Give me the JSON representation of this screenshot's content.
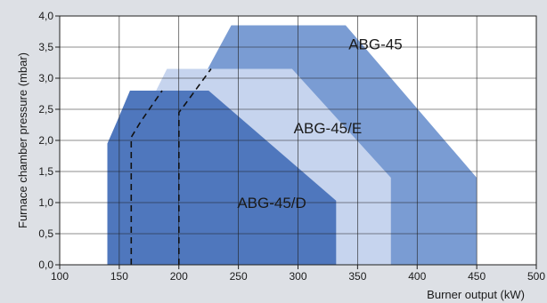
{
  "chart_data": {
    "type": "area",
    "xlabel": "Burner output (kW)",
    "ylabel": "Furnace chamber pressure (mbar)",
    "xlim": [
      100,
      500
    ],
    "ylim": [
      0,
      4
    ],
    "x_ticks": [
      "100",
      "150",
      "200",
      "250",
      "300",
      "350",
      "400",
      "450",
      "500"
    ],
    "y_ticks": [
      "0,0",
      "0,5",
      "1,0",
      "1,5",
      "2,0",
      "2,5",
      "3,0",
      "3,5",
      "4,0"
    ],
    "grid": true,
    "series": [
      {
        "name": "ABG-45",
        "color": "#7a9cd3",
        "label_at": [
          365,
          3.55
        ],
        "polygon": [
          [
            193,
            0
          ],
          [
            193,
            2.0
          ],
          [
            220,
            3.0
          ],
          [
            244,
            3.85
          ],
          [
            340,
            3.85
          ],
          [
            450,
            1.4
          ],
          [
            450,
            0
          ]
        ]
      },
      {
        "name": "ABG-45/E",
        "color": "#c6d4ee",
        "label_at": [
          325,
          2.2
        ],
        "polygon": [
          [
            160,
            0
          ],
          [
            160,
            2.0
          ],
          [
            190,
            3.15
          ],
          [
            295,
            3.15
          ],
          [
            378,
            1.4
          ],
          [
            378,
            0
          ]
        ]
      },
      {
        "name": "ABG-45/D",
        "color": "#4f77bd",
        "label_at": [
          278,
          1.0
        ],
        "polygon": [
          [
            140,
            0
          ],
          [
            140,
            1.95
          ],
          [
            148,
            2.3
          ],
          [
            159,
            2.8
          ],
          [
            225,
            2.8
          ],
          [
            332,
            1.03
          ],
          [
            332,
            0
          ]
        ]
      }
    ],
    "dashed_lines": [
      [
        [
          160,
          0
        ],
        [
          160,
          2.05
        ],
        [
          168,
          2.3
        ],
        [
          186,
          2.8
        ]
      ],
      [
        [
          200,
          0
        ],
        [
          200,
          2.45
        ],
        [
          206,
          2.6
        ],
        [
          227,
          3.15
        ]
      ]
    ]
  }
}
